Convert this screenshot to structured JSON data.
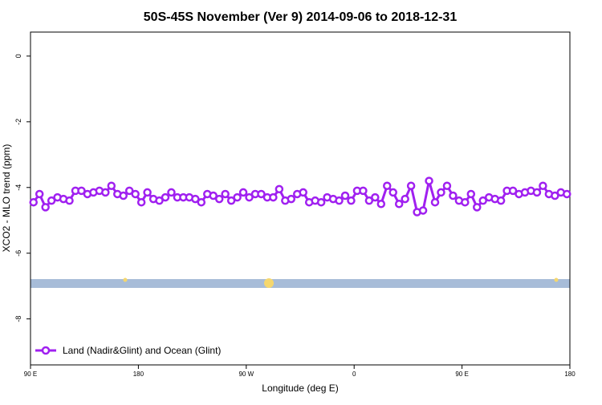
{
  "chart_data": {
    "type": "line",
    "title": "50S-45S November (Ver 9)   2014-09-06 to 2018-12-31",
    "xlabel": "Longitude (deg E)",
    "ylabel": "XCO2 - MLO trend (ppm)",
    "x": [
      92.5,
      97.5,
      102.5,
      107.5,
      112.5,
      117.5,
      122.5,
      127.5,
      132.5,
      137.5,
      142.5,
      147.5,
      152.5,
      157.5,
      162.5,
      167.5,
      172.5,
      177.5,
      182.5,
      187.5,
      192.5,
      197.5,
      202.5,
      207.5,
      212.5,
      217.5,
      222.5,
      227.5,
      232.5,
      237.5,
      242.5,
      247.5,
      252.5,
      257.5,
      262.5,
      267.5,
      272.5,
      277.5,
      282.5,
      287.5,
      292.5,
      297.5,
      302.5,
      307.5,
      312.5,
      317.5,
      322.5,
      327.5,
      332.5,
      337.5,
      342.5,
      347.5,
      352.5,
      357.5,
      362.5,
      367.5,
      372.5,
      377.5,
      382.5,
      387.5,
      392.5,
      397.5,
      402.5,
      407.5,
      412.5,
      417.5,
      422.5,
      427.5,
      432.5,
      437.5,
      442.5,
      447.5,
      452.5,
      457.5,
      462.5,
      467.5,
      472.5,
      477.5,
      482.5,
      487.5,
      492.5,
      497.5,
      502.5,
      507.5,
      512.5,
      517.5,
      522.5,
      527.5,
      532.5,
      537.5
    ],
    "series": [
      {
        "name": "Land (Nadir&Glint) and Ocean (Glint)",
        "color": "#a020f0",
        "values": [
          -4.45,
          -4.2,
          -4.6,
          -4.4,
          -4.3,
          -4.35,
          -4.4,
          -4.1,
          -4.1,
          -4.2,
          -4.15,
          -4.1,
          -4.15,
          -3.95,
          -4.2,
          -4.25,
          -4.1,
          -4.2,
          -4.45,
          -4.15,
          -4.35,
          -4.4,
          -4.3,
          -4.15,
          -4.3,
          -4.3,
          -4.3,
          -4.35,
          -4.45,
          -4.2,
          -4.25,
          -4.35,
          -4.2,
          -4.4,
          -4.3,
          -4.15,
          -4.3,
          -4.2,
          -4.2,
          -4.3,
          -4.3,
          -4.05,
          -4.4,
          -4.35,
          -4.2,
          -4.15,
          -4.45,
          -4.4,
          -4.45,
          -4.3,
          -4.35,
          -4.4,
          -4.25,
          -4.4,
          -4.1,
          -4.1,
          -4.4,
          -4.3,
          -4.5,
          -3.95,
          -4.15,
          -4.5,
          -4.35,
          -3.95,
          -4.75,
          -4.7,
          -3.8,
          -4.45,
          -4.15,
          -3.95,
          -4.25,
          -4.4,
          -4.45,
          -4.2,
          -4.6,
          -4.4,
          -4.3,
          -4.35,
          -4.4,
          -4.1,
          -4.1,
          -4.2,
          -4.15,
          -4.1,
          -4.15,
          -3.95,
          -4.2,
          -4.25,
          -4.15,
          -4.2
        ]
      }
    ],
    "xlim": [
      90,
      540
    ],
    "xticks": [
      {
        "value": 90,
        "label": "90 E"
      },
      180,
      {
        "value": 270,
        "label": "90 W"
      },
      {
        "value": 360,
        "label": "0"
      },
      {
        "value": 450,
        "label": "90 E"
      },
      {
        "value": 540,
        "label": "180"
      }
    ],
    "ylim": [
      -9.4,
      0.73
    ],
    "yticks": [
      0,
      -2,
      -4,
      -6,
      -8
    ],
    "legend": "bottom-left"
  }
}
